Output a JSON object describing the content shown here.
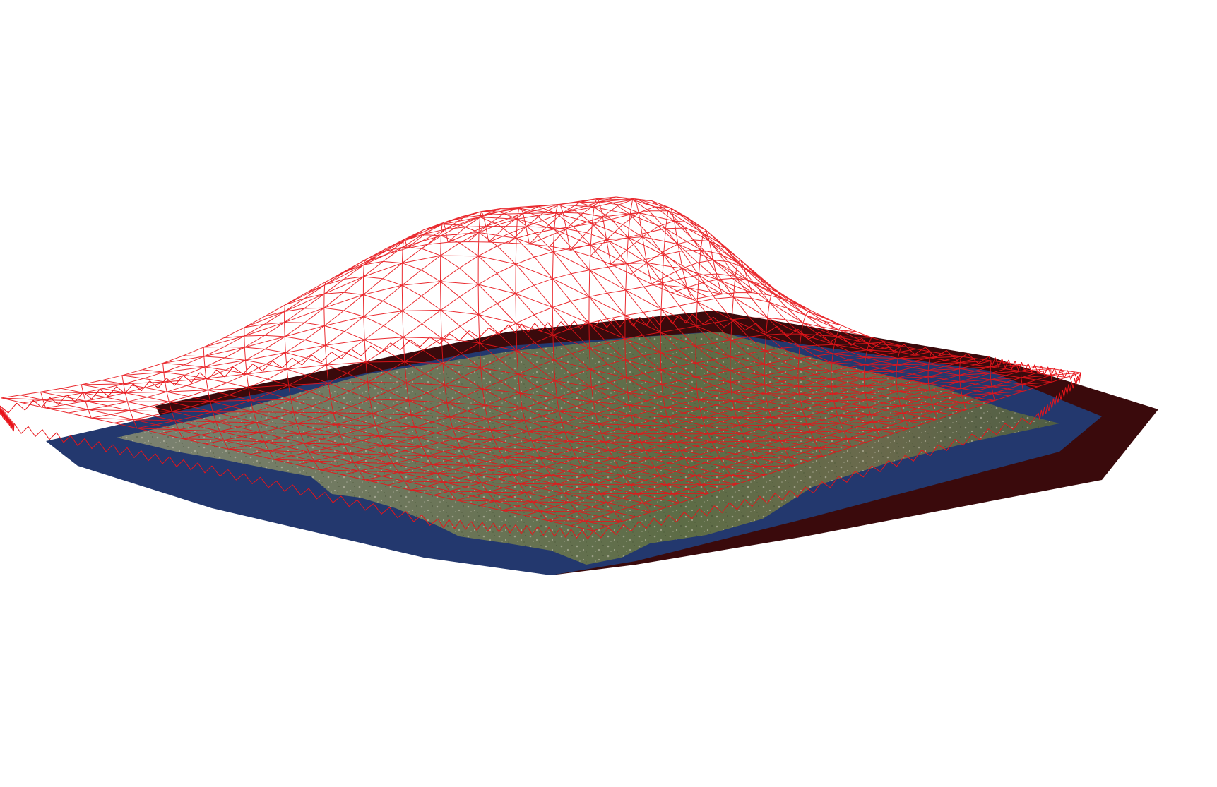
{
  "scene": {
    "description_visible_text": "",
    "background_color": "#ffffff",
    "colors": {
      "mesh_wire": "#e8141a",
      "mesh_wire_dense": "#c40a10",
      "water": "#23386e",
      "water_mid": "#2e4a82",
      "shadow_plate": "#3a0a0c",
      "terrain_green": "#5b6b47",
      "terrain_light": "#9a9a86",
      "terrain_dark": "#3f4a34",
      "terrain_tan": "#8a7a55"
    },
    "render_style": "3d-wireframe-terrain-over-aerial-imagery",
    "icons": []
  }
}
